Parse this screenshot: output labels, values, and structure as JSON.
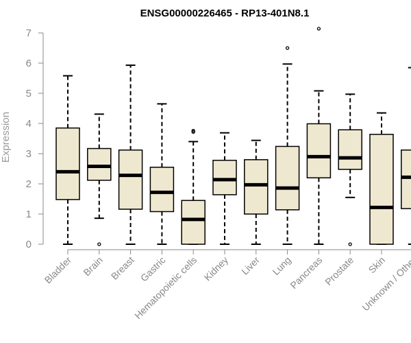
{
  "chart_data": {
    "type": "boxplot",
    "title": "ENSG00000226465 - RP13-401N8.1",
    "xlabel": "",
    "ylabel": "Expression",
    "ylim": [
      0,
      7
    ],
    "yticks": [
      "0",
      "1",
      "2",
      "3",
      "4",
      "5",
      "6",
      "7"
    ],
    "grid": false,
    "box_fill": "#efe8d0",
    "categories": [
      "Bladder",
      "Brain",
      "Breast",
      "Gastric",
      "Hematopoietic cells",
      "Kidney",
      "Liver",
      "Lung",
      "Pancreas",
      "Prostate",
      "Skin",
      "Unknown / Other"
    ],
    "boxes": [
      {
        "min": 0.0,
        "q1": 1.48,
        "median": 2.4,
        "q3": 3.85,
        "max": 5.58,
        "outliers": []
      },
      {
        "min": 0.86,
        "q1": 2.12,
        "median": 2.58,
        "q3": 3.17,
        "max": 4.31,
        "outliers": [
          0.0
        ]
      },
      {
        "min": 0.0,
        "q1": 1.16,
        "median": 2.28,
        "q3": 3.12,
        "max": 5.93,
        "outliers": []
      },
      {
        "min": 0.0,
        "q1": 1.08,
        "median": 1.72,
        "q3": 2.55,
        "max": 4.65,
        "outliers": []
      },
      {
        "min": 0.0,
        "q1": 0.0,
        "median": 0.82,
        "q3": 1.45,
        "max": 3.4,
        "outliers": [
          3.72,
          3.76
        ]
      },
      {
        "min": 0.0,
        "q1": 1.64,
        "median": 2.14,
        "q3": 2.78,
        "max": 3.69,
        "outliers": []
      },
      {
        "min": 0.0,
        "q1": 1.0,
        "median": 1.97,
        "q3": 2.8,
        "max": 3.44,
        "outliers": []
      },
      {
        "min": 0.0,
        "q1": 1.14,
        "median": 1.86,
        "q3": 3.24,
        "max": 5.97,
        "outliers": [
          6.5
        ]
      },
      {
        "min": 0.0,
        "q1": 2.2,
        "median": 2.9,
        "q3": 3.99,
        "max": 5.08,
        "outliers": [
          7.14
        ]
      },
      {
        "min": 1.55,
        "q1": 2.48,
        "median": 2.86,
        "q3": 3.79,
        "max": 4.97,
        "outliers": [
          0.0
        ]
      },
      {
        "min": 0.0,
        "q1": 0.0,
        "median": 1.22,
        "q3": 3.64,
        "max": 4.35,
        "outliers": []
      },
      {
        "min": 0.0,
        "q1": 1.18,
        "median": 2.22,
        "q3": 3.12,
        "max": 5.85,
        "outliers": []
      }
    ]
  }
}
